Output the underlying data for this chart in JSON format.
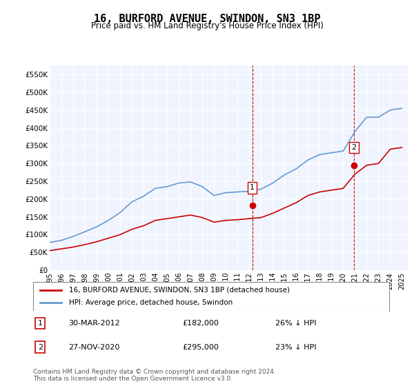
{
  "title": "16, BURFORD AVENUE, SWINDON, SN3 1BP",
  "subtitle": "Price paid vs. HM Land Registry's House Price Index (HPI)",
  "legend_label_red": "16, BURFORD AVENUE, SWINDON, SN3 1BP (detached house)",
  "legend_label_blue": "HPI: Average price, detached house, Swindon",
  "annotation1_label": "1",
  "annotation1_date": "30-MAR-2012",
  "annotation1_price": "£182,000",
  "annotation1_hpi": "26% ↓ HPI",
  "annotation1_year": 2012.25,
  "annotation1_value": 182000,
  "annotation2_label": "2",
  "annotation2_date": "27-NOV-2020",
  "annotation2_price": "£295,000",
  "annotation2_hpi": "23% ↓ HPI",
  "annotation2_year": 2020.9,
  "annotation2_value": 295000,
  "footer": "Contains HM Land Registry data © Crown copyright and database right 2024.\nThis data is licensed under the Open Government Licence v3.0.",
  "ylim": [
    0,
    575000
  ],
  "xlim_start": 1995.0,
  "xlim_end": 2025.5,
  "background_color": "#ffffff",
  "plot_bg_color": "#f0f4ff",
  "grid_color": "#ffffff",
  "red_color": "#cc0000",
  "blue_color": "#6699cc",
  "vline_color": "#cc0000",
  "hpi_years": [
    1995,
    1996,
    1997,
    1998,
    1999,
    2000,
    2001,
    2002,
    2003,
    2004,
    2005,
    2006,
    2007,
    2008,
    2009,
    2010,
    2011,
    2012,
    2013,
    2014,
    2015,
    2016,
    2017,
    2018,
    2019,
    2020,
    2021,
    2022,
    2023,
    2024,
    2025
  ],
  "hpi_values": [
    78000,
    84000,
    95000,
    108000,
    122000,
    140000,
    162000,
    192000,
    208000,
    230000,
    235000,
    245000,
    248000,
    235000,
    210000,
    218000,
    220000,
    222000,
    228000,
    245000,
    268000,
    285000,
    310000,
    325000,
    330000,
    335000,
    390000,
    430000,
    430000,
    450000,
    455000
  ],
  "red_years": [
    1995,
    1996,
    1997,
    1998,
    1999,
    2000,
    2001,
    2002,
    2003,
    2004,
    2005,
    2006,
    2007,
    2008,
    2009,
    2010,
    2011,
    2012,
    2013,
    2014,
    2015,
    2016,
    2017,
    2018,
    2019,
    2020,
    2021,
    2022,
    2023,
    2024,
    2025
  ],
  "red_values": [
    55000,
    60000,
    65000,
    72000,
    80000,
    90000,
    100000,
    115000,
    125000,
    140000,
    145000,
    150000,
    155000,
    148000,
    135000,
    140000,
    142000,
    145000,
    148000,
    160000,
    175000,
    190000,
    210000,
    220000,
    225000,
    230000,
    270000,
    295000,
    300000,
    340000,
    345000
  ],
  "ytick_labels": [
    "£0",
    "£50K",
    "£100K",
    "£150K",
    "£200K",
    "£250K",
    "£300K",
    "£350K",
    "£400K",
    "£450K",
    "£500K",
    "£550K"
  ],
  "ytick_values": [
    0,
    50000,
    100000,
    150000,
    200000,
    250000,
    300000,
    350000,
    400000,
    450000,
    500000,
    550000
  ],
  "xtick_years": [
    1995,
    1996,
    1997,
    1998,
    1999,
    2000,
    2001,
    2002,
    2003,
    2004,
    2005,
    2006,
    2007,
    2008,
    2009,
    2010,
    2011,
    2012,
    2013,
    2014,
    2015,
    2016,
    2017,
    2018,
    2019,
    2020,
    2021,
    2022,
    2023,
    2024,
    2025
  ]
}
